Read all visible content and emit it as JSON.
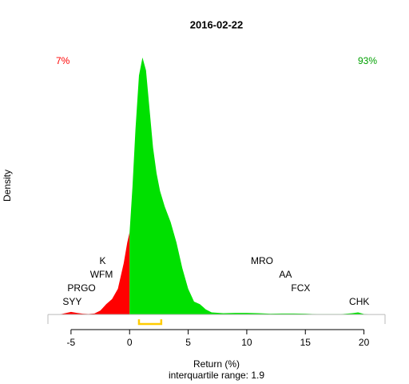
{
  "chart_data": {
    "type": "density",
    "title": "2016-02-22",
    "xlabel": "Return (%)",
    "ylabel": "Density",
    "subtitle": "interquartile range: 1.9",
    "xlim": [
      -6.97,
      21.8
    ],
    "ylim": [
      -0.037,
      1.037
    ],
    "xticks": [
      -5,
      0,
      5,
      10,
      15,
      20
    ],
    "series": [
      {
        "color": "#ff0000",
        "x": [
          -6,
          -5.5,
          -5,
          -4.5,
          -4,
          -3.5,
          -3,
          -2.5,
          -2,
          -1.5,
          -1,
          -0.5,
          -0.2,
          0
        ],
        "values": [
          0,
          0.005,
          0.01,
          0.006,
          0.003,
          0.002,
          0.004,
          0.015,
          0.04,
          0.06,
          0.1,
          0.2,
          0.28,
          0.32
        ]
      },
      {
        "color": "#00e000",
        "x": [
          0,
          0.25,
          0.5,
          0.8,
          1.1,
          1.4,
          1.7,
          2.0,
          2.3,
          2.6,
          3.0,
          3.5,
          4.0,
          4.5,
          5,
          5.5,
          6,
          6.5,
          7,
          8,
          9,
          10,
          11,
          12,
          13,
          14,
          15,
          16,
          17,
          18,
          19,
          19.5,
          20,
          20.5
        ],
        "values": [
          0.32,
          0.5,
          0.72,
          0.93,
          1.0,
          0.95,
          0.8,
          0.65,
          0.55,
          0.48,
          0.42,
          0.36,
          0.28,
          0.18,
          0.1,
          0.05,
          0.04,
          0.02,
          0.008,
          0.005,
          0.006,
          0.006,
          0.005,
          0.003,
          0.004,
          0.004,
          0.003,
          0.001,
          0.001,
          0.001,
          0.005,
          0.008,
          0.002,
          0
        ]
      }
    ],
    "annotations": [
      {
        "text": "7%",
        "color": "#ff0000",
        "corner": "top-left"
      },
      {
        "text": "93%",
        "color": "#00a000",
        "corner": "top-right"
      }
    ],
    "point_labels": [
      {
        "text": "SYY",
        "x": -4.9
      },
      {
        "text": "PRGO",
        "x": -4.1
      },
      {
        "text": "WFM",
        "x": -2.4
      },
      {
        "text": "K",
        "x": -2.3
      },
      {
        "text": "MRO",
        "x": 11.3
      },
      {
        "text": "AA",
        "x": 13.3
      },
      {
        "text": "FCX",
        "x": 14.6
      },
      {
        "text": "CHK",
        "x": 19.6
      }
    ],
    "iqr": [
      0.8,
      2.7
    ],
    "iqr_color": "#ffcc00"
  }
}
